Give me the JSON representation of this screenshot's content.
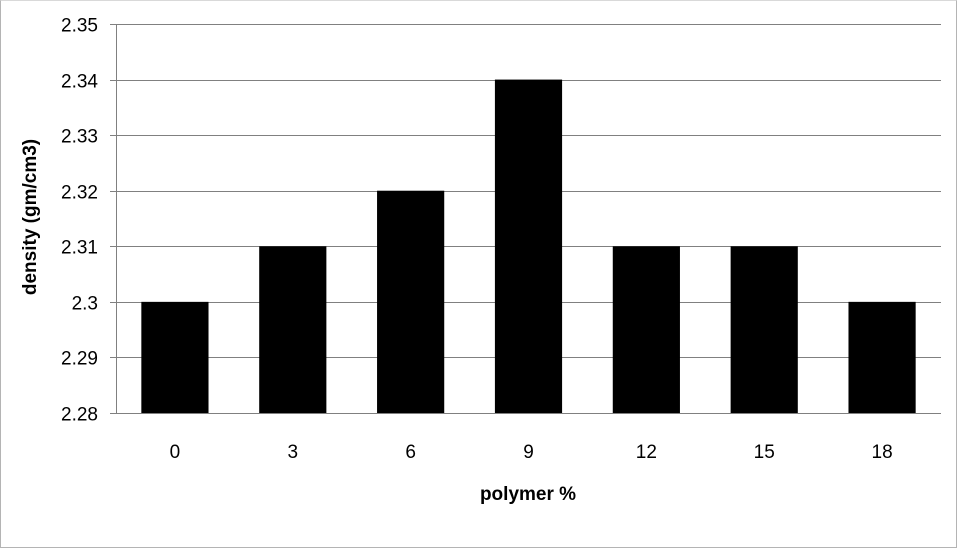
{
  "chart_data": {
    "type": "bar",
    "categories": [
      "0",
      "3",
      "6",
      "9",
      "12",
      "15",
      "18"
    ],
    "values": [
      2.3,
      2.31,
      2.32,
      2.34,
      2.31,
      2.31,
      2.3
    ],
    "xlabel": "polymer %",
    "ylabel": "density (gm/cm3)",
    "ylim": [
      2.28,
      2.35
    ],
    "yticks": [
      "2.28",
      "2.29",
      "2.3",
      "2.31",
      "2.32",
      "2.33",
      "2.34",
      "2.35"
    ],
    "grid": true,
    "bar_color": "#000000",
    "grid_color": "#808080"
  }
}
